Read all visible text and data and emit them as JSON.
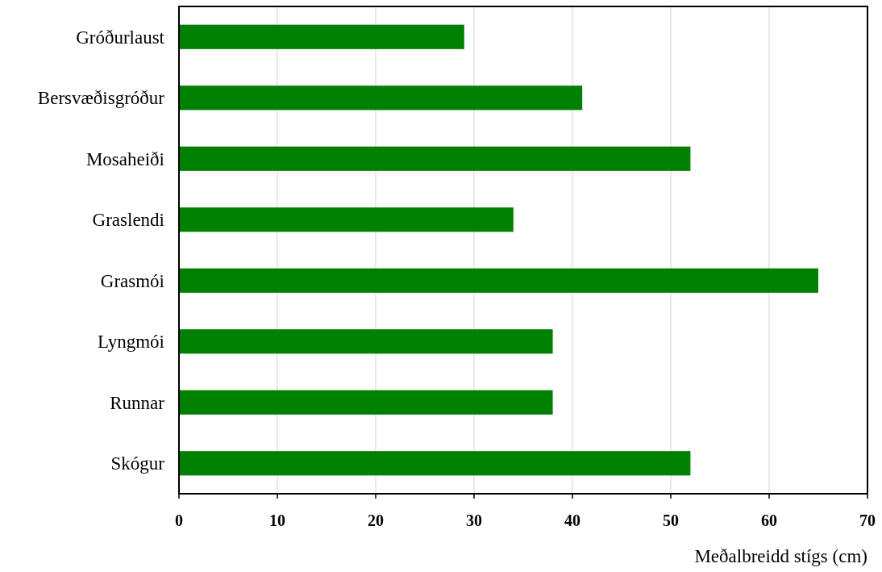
{
  "chart_data": {
    "type": "bar",
    "orientation": "horizontal",
    "xlabel": "Meðalbreidd stígs (cm)",
    "categories": [
      "Gróðurlaust",
      "Bersvæðisgróður",
      "Mosaheiði",
      "Graslendi",
      "Grasmói",
      "Lyngmói",
      "Runnar",
      "Skógur"
    ],
    "values": [
      29,
      41,
      52,
      34,
      65,
      38,
      38,
      52
    ],
    "color": "#008000",
    "xlim": [
      0,
      70
    ],
    "xticks": [
      0,
      10,
      20,
      30,
      40,
      50,
      60,
      70
    ],
    "grid": "x"
  }
}
